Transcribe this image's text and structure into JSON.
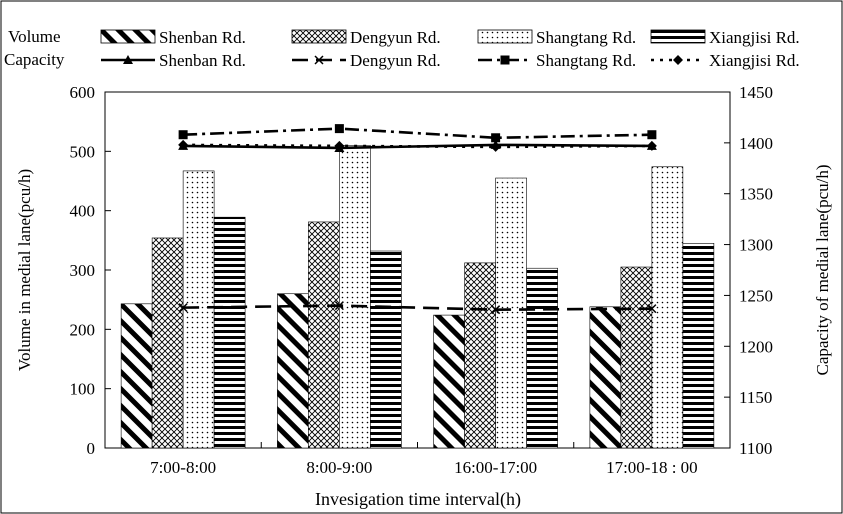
{
  "chart_data": {
    "type": "bar",
    "categories": [
      "7:00-8:00",
      "8:00-9:00",
      "16:00-17:00",
      "17:00-18 : 00"
    ],
    "xlabel": "Invesigation time interval(h)",
    "ylabel_left": "Volume in medial lane(pcu/h)",
    "ylabel_right": "Capacity of medial lane(pcu/h)",
    "ylim_left": [
      0,
      600
    ],
    "ylim_right": [
      1100,
      1450
    ],
    "yticks_left": [
      0,
      100,
      200,
      300,
      400,
      500,
      600
    ],
    "yticks_right": [
      1100,
      1150,
      1200,
      1250,
      1300,
      1350,
      1400,
      1450
    ],
    "legend_row_labels": [
      "Volume",
      "Capacity"
    ],
    "bar_series": [
      {
        "name": "Shenban Rd.",
        "pattern": "diagonal-hatch",
        "values": [
          243,
          260,
          224,
          238
        ]
      },
      {
        "name": "Dengyun Rd.",
        "pattern": "crosshatch",
        "values": [
          354,
          381,
          312,
          305
        ]
      },
      {
        "name": "Shangtang Rd.",
        "pattern": "dots",
        "values": [
          467,
          510,
          455,
          474
        ]
      },
      {
        "name": "Xiangjisi Rd.",
        "pattern": "horizontal-lines",
        "values": [
          389,
          332,
          303,
          345
        ]
      }
    ],
    "line_series": [
      {
        "name": "Shenban Rd.",
        "marker": "triangle",
        "dash": "solid",
        "values": [
          1397,
          1395,
          1398,
          1397
        ]
      },
      {
        "name": "Dengyun Rd.",
        "marker": "x",
        "dash": "long-dash",
        "values": [
          1238,
          1240,
          1236,
          1237
        ]
      },
      {
        "name": "Shangtang Rd.",
        "marker": "square",
        "dash": "dash-dot",
        "values": [
          1408,
          1414,
          1405,
          1408
        ]
      },
      {
        "name": "Xiangjisi Rd.",
        "marker": "diamond",
        "dash": "dotted",
        "values": [
          1398,
          1397,
          1396,
          1397
        ]
      }
    ],
    "grid": false,
    "legend_position": "top"
  }
}
